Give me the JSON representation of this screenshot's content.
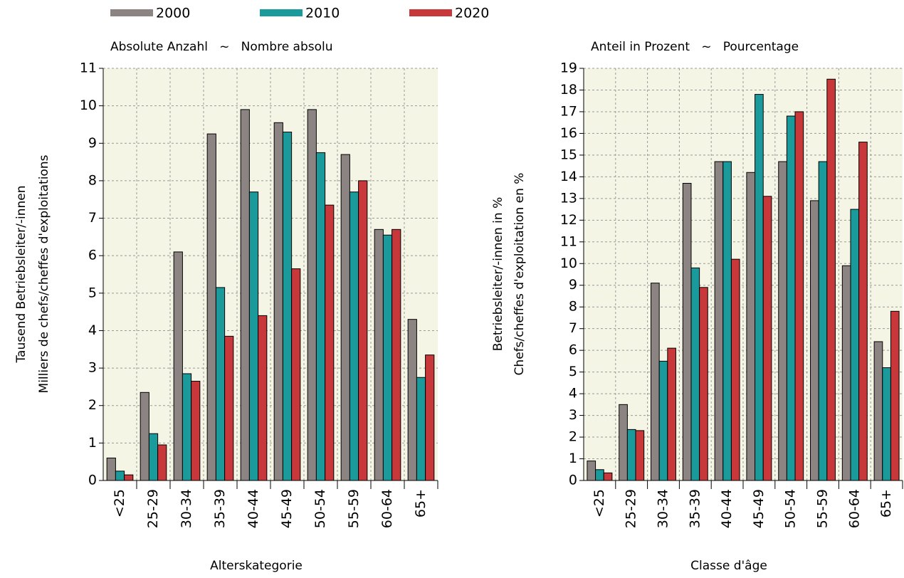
{
  "chart_data": [
    {
      "type": "bar",
      "title": "Absolute Anzahl   ~   Nombre absolu",
      "ylabel": [
        "Tausend Betriebsleiter/-innen",
        "Milliers de chefs/cheffes d'exploitations"
      ],
      "xlabel": "Alterskategorie",
      "categories": [
        "<25",
        "25-29",
        "30-34",
        "35-39",
        "40-44",
        "45-49",
        "50-54",
        "55-59",
        "60-64",
        "65+"
      ],
      "series": [
        {
          "name": "2000",
          "color": "#8c8482",
          "values": [
            0.6,
            2.35,
            6.1,
            9.25,
            9.9,
            9.55,
            9.9,
            8.7,
            6.7,
            4.3
          ]
        },
        {
          "name": "2010",
          "color": "#1a9a9a",
          "values": [
            0.25,
            1.25,
            2.85,
            5.15,
            7.7,
            9.3,
            8.75,
            7.7,
            6.55,
            2.75
          ]
        },
        {
          "name": "2020",
          "color": "#c8373a",
          "values": [
            0.15,
            0.95,
            2.65,
            3.85,
            4.4,
            5.65,
            7.35,
            8.0,
            6.7,
            3.35
          ]
        }
      ],
      "ylim": [
        0,
        11
      ],
      "yticks": [
        0,
        1,
        2,
        3,
        4,
        5,
        6,
        7,
        8,
        9,
        10,
        11
      ],
      "grid": true
    },
    {
      "type": "bar",
      "title": "Anteil in Prozent   ~   Pourcentage",
      "ylabel": [
        "Betriebsleiter/-innen in %",
        "Chefs/cheffes d'exploitation en %"
      ],
      "xlabel": "Classe d'âge",
      "categories": [
        "<25",
        "25-29",
        "30-34",
        "35-39",
        "40-44",
        "45-49",
        "50-54",
        "55-59",
        "60-64",
        "65+"
      ],
      "series": [
        {
          "name": "2000",
          "color": "#8c8482",
          "values": [
            0.9,
            3.5,
            9.1,
            13.7,
            14.7,
            14.2,
            14.7,
            12.9,
            9.9,
            6.4
          ]
        },
        {
          "name": "2010",
          "color": "#1a9a9a",
          "values": [
            0.5,
            2.35,
            5.5,
            9.8,
            14.7,
            17.8,
            16.8,
            14.7,
            12.5,
            5.2
          ]
        },
        {
          "name": "2020",
          "color": "#c8373a",
          "values": [
            0.35,
            2.3,
            6.1,
            8.9,
            10.2,
            13.1,
            17.0,
            18.5,
            15.6,
            7.8
          ]
        }
      ],
      "ylim": [
        0,
        19
      ],
      "yticks": [
        0,
        1,
        2,
        3,
        4,
        5,
        6,
        7,
        8,
        9,
        10,
        11,
        12,
        13,
        14,
        15,
        16,
        17,
        18,
        19
      ],
      "grid": true
    }
  ]
}
